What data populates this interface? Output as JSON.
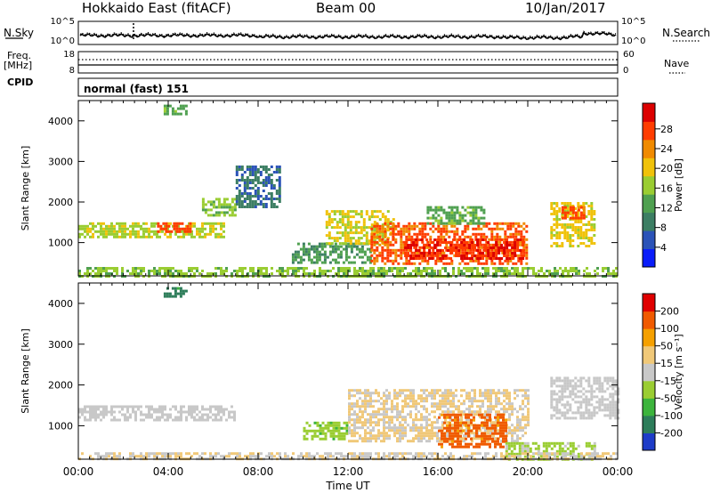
{
  "header": {
    "station": "Hokkaido East (fitACF)",
    "beam": "Beam 00",
    "date": "10/Jan/2017"
  },
  "top_panels": {
    "nsky_label": "N.Sky",
    "nsky_ticks": [
      "10^5",
      "10^0"
    ],
    "nsearch_label": "N.Search",
    "nsearch_ticks": [
      "10^5",
      "10^0"
    ],
    "freq_label_1": "Freq.",
    "freq_label_2": "[MHz]",
    "freq_ticks": [
      "18",
      "8"
    ],
    "nave_label": "Nave",
    "nave_ticks": [
      "60",
      "0"
    ],
    "cpid_label": "CPID",
    "cpid_value": "normal (fast) 151"
  },
  "chart_data": [
    {
      "type": "heatmap",
      "name": "power",
      "ylabel": "Slant Range [km]",
      "xlabel": "Time UT",
      "x_ticks": [
        "00:00",
        "04:00",
        "08:00",
        "12:00",
        "16:00",
        "20:00",
        "00:00"
      ],
      "xlim_hours": [
        0,
        24
      ],
      "ylim": [
        180,
        4500
      ],
      "y_ticks": [
        1000,
        2000,
        3000,
        4000
      ],
      "colorbar": {
        "label": "Power [dB]",
        "ticks": [
          "4",
          "8",
          "12",
          "16",
          "20",
          "24",
          "28"
        ],
        "range": [
          0,
          30
        ],
        "colors": [
          "#0a1dfa",
          "#2b53b8",
          "#3c7e63",
          "#4fa050",
          "#9acd32",
          "#f0c20a",
          "#f08a00",
          "#ff3c00",
          "#dc0000"
        ]
      },
      "regions": [
        {
          "t": [
            0,
            6.5
          ],
          "r": [
            1150,
            1500
          ],
          "value": 16
        },
        {
          "t": [
            3.5,
            5
          ],
          "r": [
            1300,
            1500
          ],
          "value": 26
        },
        {
          "t": [
            5.5,
            7
          ],
          "r": [
            1700,
            2100
          ],
          "value": 14
        },
        {
          "t": [
            3.8,
            4.8
          ],
          "r": [
            4200,
            4400
          ],
          "value": 12
        },
        {
          "t": [
            7,
            9
          ],
          "r": [
            1900,
            2900
          ],
          "value": 6
        },
        {
          "t": [
            9.5,
            13
          ],
          "r": [
            500,
            1000
          ],
          "value": 10
        },
        {
          "t": [
            11,
            14
          ],
          "r": [
            1000,
            1800
          ],
          "value": 17
        },
        {
          "t": [
            13,
            20
          ],
          "r": [
            500,
            1500
          ],
          "value": 25
        },
        {
          "t": [
            14.5,
            19.8
          ],
          "r": [
            600,
            1100
          ],
          "value": 28
        },
        {
          "t": [
            15.5,
            18
          ],
          "r": [
            1500,
            1900
          ],
          "value": 12
        },
        {
          "t": [
            21,
            23
          ],
          "r": [
            900,
            2000
          ],
          "value": 18
        },
        {
          "t": [
            21.5,
            22.5
          ],
          "r": [
            1600,
            1900
          ],
          "value": 26
        },
        {
          "t": [
            0,
            24
          ],
          "r": [
            180,
            400
          ],
          "value": 14
        }
      ]
    },
    {
      "type": "heatmap",
      "name": "velocity",
      "ylabel": "Slant Range [km]",
      "xlabel": "Time UT",
      "x_ticks": [
        "00:00",
        "04:00",
        "08:00",
        "12:00",
        "16:00",
        "20:00",
        "00:00"
      ],
      "xlim_hours": [
        0,
        24
      ],
      "ylim": [
        180,
        4500
      ],
      "y_ticks": [
        1000,
        2000,
        3000,
        4000
      ],
      "colorbar": {
        "label": "Velocity [m s⁻¹]",
        "ticks": [
          "200",
          "100",
          "50",
          "15",
          "-15",
          "-50",
          "-100",
          "-200"
        ],
        "range": [
          -250,
          250
        ],
        "colors": [
          "#e00000",
          "#f05a00",
          "#f5a000",
          "#f0c878",
          "#c8c8c8",
          "#9acd32",
          "#3cb43c",
          "#2d7d5a",
          "#1e3cc8"
        ]
      },
      "regions": [
        {
          "t": [
            0,
            7
          ],
          "r": [
            1150,
            1500
          ],
          "value": 0
        },
        {
          "t": [
            3.8,
            4.8
          ],
          "r": [
            4200,
            4400
          ],
          "value": -180
        },
        {
          "t": [
            10,
            12
          ],
          "r": [
            700,
            1100
          ],
          "value": -70
        },
        {
          "t": [
            12,
            20
          ],
          "r": [
            600,
            1900
          ],
          "value": 40
        },
        {
          "t": [
            16,
            19
          ],
          "r": [
            500,
            1300
          ],
          "value": 180
        },
        {
          "t": [
            21,
            24
          ],
          "r": [
            1200,
            2200
          ],
          "value": 0
        },
        {
          "t": [
            19,
            23
          ],
          "r": [
            180,
            600
          ],
          "value": -50
        },
        {
          "t": [
            0,
            24
          ],
          "r": [
            180,
            350
          ],
          "value": 30
        }
      ]
    }
  ]
}
